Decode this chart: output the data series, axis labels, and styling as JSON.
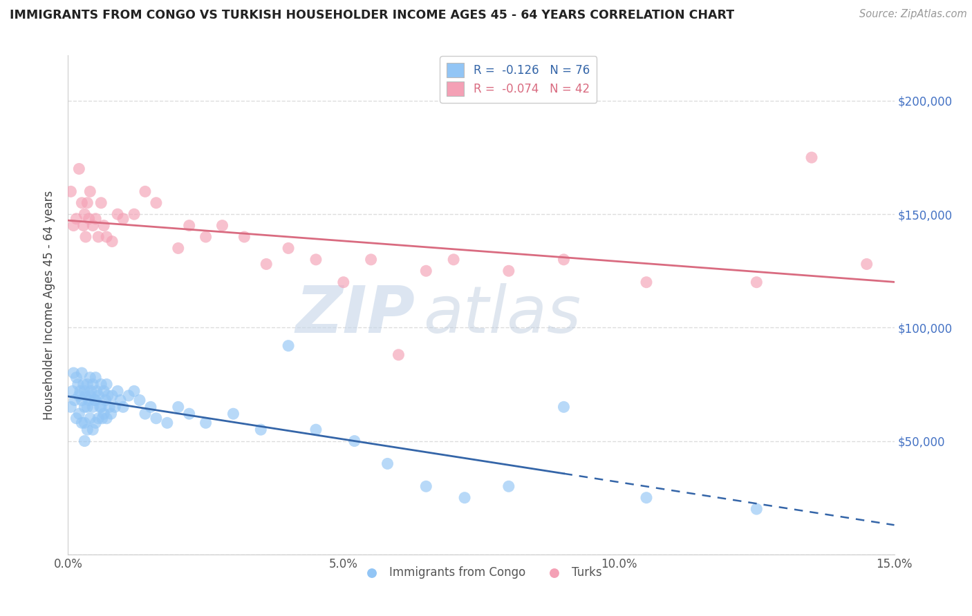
{
  "title": "IMMIGRANTS FROM CONGO VS TURKISH HOUSEHOLDER INCOME AGES 45 - 64 YEARS CORRELATION CHART",
  "source": "Source: ZipAtlas.com",
  "ylabel": "Householder Income Ages 45 - 64 years",
  "xlabel_ticks": [
    "0.0%",
    "5.0%",
    "10.0%",
    "15.0%"
  ],
  "xlabel_vals": [
    0.0,
    5.0,
    10.0,
    15.0
  ],
  "ytick_vals": [
    0,
    50000,
    100000,
    150000,
    200000
  ],
  "right_ytick_labels": [
    "$50,000",
    "$100,000",
    "$150,000",
    "$200,000"
  ],
  "right_ytick_vals": [
    50000,
    100000,
    150000,
    200000
  ],
  "blue_color": "#92C5F5",
  "pink_color": "#F4A0B5",
  "trend_blue_color": "#3465A8",
  "trend_pink_color": "#D96B80",
  "watermark_zip": "ZIP",
  "watermark_atlas": "atlas",
  "watermark_color_zip": "#C5D5E8",
  "watermark_color_atlas": "#B8C8DC",
  "congo_x": [
    0.05,
    0.08,
    0.1,
    0.12,
    0.15,
    0.15,
    0.18,
    0.2,
    0.2,
    0.22,
    0.25,
    0.25,
    0.25,
    0.28,
    0.3,
    0.3,
    0.3,
    0.3,
    0.32,
    0.35,
    0.35,
    0.35,
    0.38,
    0.4,
    0.4,
    0.4,
    0.42,
    0.45,
    0.45,
    0.45,
    0.48,
    0.5,
    0.5,
    0.5,
    0.52,
    0.55,
    0.55,
    0.58,
    0.6,
    0.6,
    0.62,
    0.65,
    0.65,
    0.68,
    0.7,
    0.7,
    0.72,
    0.75,
    0.78,
    0.8,
    0.85,
    0.9,
    0.95,
    1.0,
    1.1,
    1.2,
    1.3,
    1.4,
    1.5,
    1.6,
    1.8,
    2.0,
    2.2,
    2.5,
    3.0,
    3.5,
    4.0,
    4.5,
    5.2,
    5.8,
    6.5,
    7.2,
    8.0,
    9.0,
    10.5,
    12.5
  ],
  "congo_y": [
    65000,
    72000,
    80000,
    68000,
    78000,
    60000,
    75000,
    70000,
    62000,
    72000,
    80000,
    68000,
    58000,
    75000,
    72000,
    65000,
    58000,
    50000,
    70000,
    75000,
    65000,
    55000,
    68000,
    78000,
    70000,
    60000,
    72000,
    75000,
    65000,
    55000,
    68000,
    78000,
    68000,
    58000,
    72000,
    70000,
    60000,
    65000,
    75000,
    65000,
    60000,
    72000,
    62000,
    68000,
    75000,
    60000,
    70000,
    65000,
    62000,
    70000,
    65000,
    72000,
    68000,
    65000,
    70000,
    72000,
    68000,
    62000,
    65000,
    60000,
    58000,
    65000,
    62000,
    58000,
    62000,
    55000,
    92000,
    55000,
    50000,
    40000,
    30000,
    25000,
    30000,
    65000,
    25000,
    20000
  ],
  "turk_x": [
    0.05,
    0.1,
    0.15,
    0.2,
    0.25,
    0.28,
    0.3,
    0.32,
    0.35,
    0.38,
    0.4,
    0.45,
    0.5,
    0.55,
    0.6,
    0.65,
    0.7,
    0.8,
    0.9,
    1.0,
    1.2,
    1.4,
    1.6,
    2.0,
    2.2,
    2.5,
    2.8,
    3.2,
    3.6,
    4.0,
    4.5,
    5.0,
    5.5,
    6.0,
    6.5,
    7.0,
    8.0,
    9.0,
    10.5,
    12.5,
    13.5,
    14.5
  ],
  "turk_y": [
    160000,
    145000,
    148000,
    170000,
    155000,
    145000,
    150000,
    140000,
    155000,
    148000,
    160000,
    145000,
    148000,
    140000,
    155000,
    145000,
    140000,
    138000,
    150000,
    148000,
    150000,
    160000,
    155000,
    135000,
    145000,
    140000,
    145000,
    140000,
    128000,
    135000,
    130000,
    120000,
    130000,
    88000,
    125000,
    130000,
    125000,
    130000,
    120000,
    120000,
    175000,
    128000
  ],
  "blue_solid_end": 9.0,
  "xlim": [
    0,
    15
  ],
  "ylim": [
    0,
    220000
  ],
  "figsize": [
    14.06,
    8.92
  ],
  "dpi": 100
}
